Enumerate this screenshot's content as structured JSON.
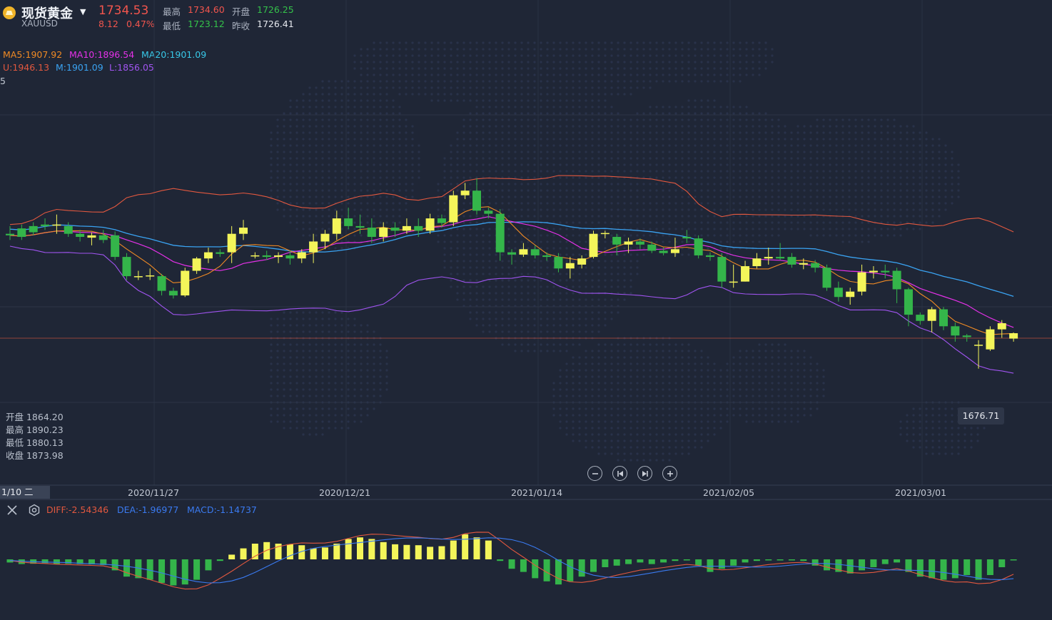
{
  "colors": {
    "background": "#1f2636",
    "up_candle": "#f4f55a",
    "down_candle": "#34b54a",
    "ma5": "#f08a24",
    "ma10": "#e431e8",
    "ma20": "#3aa3f2",
    "boll_upper": "#e2583f",
    "boll_mid": "#3aa3f2",
    "boll_lower": "#a054f0",
    "diff": "#e2583f",
    "dea": "#3a7af0",
    "price_line": "#e2583f"
  },
  "header": {
    "symbol_name": "现货黄金",
    "symbol_code": "XAUUSD",
    "last_price": "1734.53",
    "change": "8.12",
    "change_pct": "0.47%",
    "high_label": "最高",
    "high_value": "1734.60",
    "open_label": "开盘",
    "open_value": "1726.25",
    "low_label": "最低",
    "low_value": "1723.12",
    "prev_close_label": "昨收",
    "prev_close_value": "1726.41"
  },
  "legend_ma": {
    "ma5": "MA5:1907.92",
    "ma10": "MA10:1896.54",
    "ma20": "MA20:1901.09"
  },
  "legend_boll": {
    "upper": "U:1946.13",
    "mid": "M:1901.09",
    "lower": "L:1856.05"
  },
  "price_axis": {
    "top_partial": "5"
  },
  "ohlc_info": {
    "open": "开盘 1864.20",
    "high": "最高 1890.23",
    "low": "最低 1880.13",
    "close": "收盘 1873.98"
  },
  "low_marker": "1676.71",
  "date_axis": {
    "crosshair": "1/10 二",
    "labels": [
      "2020/11/27",
      "2020/12/21",
      "2021/01/14",
      "2021/02/05",
      "2021/03/01"
    ]
  },
  "macd_legend": {
    "diff": "DIFF:-2.54346",
    "dea": "DEA:-1.96977",
    "macd": "MACD:-1.14737"
  },
  "controls": {
    "zoom_out": "zoom-out",
    "prev": "previous",
    "next": "next",
    "zoom_in": "zoom-in"
  },
  "chart_data": {
    "type": "candlestick",
    "candles_ohlc": [
      [
        1870,
        1868,
        1880,
        1862
      ],
      [
        1877,
        1866,
        1882,
        1862
      ],
      [
        1880,
        1872,
        1885,
        1868
      ],
      [
        1882,
        1880,
        1890,
        1875
      ],
      [
        1881,
        1882,
        1895,
        1870
      ],
      [
        1880,
        1870,
        1885,
        1866
      ],
      [
        1870,
        1866,
        1875,
        1860
      ],
      [
        1865,
        1868,
        1872,
        1855
      ],
      [
        1868,
        1862,
        1875,
        1858
      ],
      [
        1868,
        1840,
        1873,
        1836
      ],
      [
        1840,
        1815,
        1845,
        1810
      ],
      [
        1815,
        1815,
        1822,
        1810
      ],
      [
        1815,
        1816,
        1825,
        1810
      ],
      [
        1815,
        1796,
        1818,
        1790
      ],
      [
        1796,
        1790,
        1800,
        1786
      ],
      [
        1790,
        1822,
        1826,
        1788
      ],
      [
        1822,
        1838,
        1840,
        1818
      ],
      [
        1838,
        1846,
        1852,
        1832
      ],
      [
        1846,
        1844,
        1850,
        1840
      ],
      [
        1846,
        1870,
        1880,
        1832
      ],
      [
        1870,
        1878,
        1888,
        1862
      ],
      [
        1842,
        1842,
        1846,
        1838
      ],
      [
        1842,
        1840,
        1848,
        1836
      ],
      [
        1840,
        1842,
        1846,
        1832
      ],
      [
        1842,
        1838,
        1848,
        1830
      ],
      [
        1838,
        1846,
        1850,
        1832
      ],
      [
        1846,
        1860,
        1870,
        1832
      ],
      [
        1860,
        1870,
        1875,
        1850
      ],
      [
        1870,
        1890,
        1900,
        1862
      ],
      [
        1890,
        1880,
        1904,
        1876
      ],
      [
        1880,
        1878,
        1895,
        1870
      ],
      [
        1878,
        1866,
        1890,
        1858
      ],
      [
        1866,
        1878,
        1885,
        1860
      ],
      [
        1878,
        1874,
        1885,
        1866
      ],
      [
        1874,
        1880,
        1890,
        1870
      ],
      [
        1880,
        1874,
        1890,
        1866
      ],
      [
        1874,
        1890,
        1896,
        1870
      ],
      [
        1890,
        1884,
        1895,
        1878
      ],
      [
        1885,
        1920,
        1926,
        1880
      ],
      [
        1920,
        1926,
        1936,
        1915
      ],
      [
        1926,
        1900,
        1942,
        1895
      ],
      [
        1900,
        1896,
        1904,
        1890
      ],
      [
        1896,
        1846,
        1902,
        1835
      ],
      [
        1846,
        1843,
        1850,
        1830
      ],
      [
        1843,
        1850,
        1858,
        1840
      ],
      [
        1850,
        1842,
        1855,
        1838
      ],
      [
        1842,
        1840,
        1846,
        1835
      ],
      [
        1840,
        1825,
        1845,
        1820
      ],
      [
        1825,
        1832,
        1840,
        1812
      ],
      [
        1830,
        1838,
        1842,
        1825
      ],
      [
        1840,
        1870,
        1874,
        1838
      ],
      [
        1870,
        1871,
        1874,
        1864
      ],
      [
        1866,
        1856,
        1870,
        1842
      ],
      [
        1856,
        1860,
        1865,
        1845
      ],
      [
        1860,
        1856,
        1864,
        1850
      ],
      [
        1856,
        1848,
        1860,
        1845
      ],
      [
        1848,
        1845,
        1852,
        1842
      ],
      [
        1845,
        1850,
        1865,
        1840
      ],
      [
        1866,
        1864,
        1875,
        1858
      ],
      [
        1864,
        1842,
        1868,
        1838
      ],
      [
        1842,
        1840,
        1846,
        1835
      ],
      [
        1840,
        1808,
        1845,
        1800
      ],
      [
        1808,
        1808,
        1830,
        1800
      ],
      [
        1808,
        1828,
        1835,
        1808
      ],
      [
        1828,
        1838,
        1845,
        1825
      ],
      [
        1838,
        1840,
        1852,
        1830
      ],
      [
        1840,
        1838,
        1858,
        1836
      ],
      [
        1840,
        1830,
        1845,
        1826
      ],
      [
        1830,
        1832,
        1838,
        1824
      ],
      [
        1832,
        1826,
        1836,
        1820
      ],
      [
        1826,
        1800,
        1830,
        1796
      ],
      [
        1800,
        1788,
        1808,
        1782
      ],
      [
        1788,
        1795,
        1800,
        1778
      ],
      [
        1795,
        1820,
        1830,
        1790
      ],
      [
        1820,
        1822,
        1828,
        1812
      ],
      [
        1822,
        1820,
        1830,
        1812
      ],
      [
        1822,
        1798,
        1826,
        1780
      ],
      [
        1798,
        1765,
        1800,
        1750
      ],
      [
        1765,
        1757,
        1768,
        1752
      ],
      [
        1757,
        1772,
        1775,
        1742
      ],
      [
        1772,
        1750,
        1775,
        1745
      ],
      [
        1750,
        1738,
        1755,
        1730
      ],
      [
        1738,
        1736,
        1740,
        1730
      ],
      [
        1726,
        1726,
        1732,
        1695
      ],
      [
        1720,
        1746,
        1750,
        1718
      ],
      [
        1746,
        1754,
        1758,
        1735
      ],
      [
        1734,
        1741,
        1742,
        1730
      ]
    ],
    "macd_hist": [
      -1,
      -1.5,
      -1.4,
      -1.2,
      -1.5,
      -1.4,
      -1.5,
      -1.6,
      -1.8,
      -3.5,
      -5.5,
      -6,
      -6.5,
      -7.5,
      -8.3,
      -8,
      -6.5,
      -3.5,
      -0.5,
      1.5,
      3.5,
      5,
      5.5,
      5,
      4.8,
      4.5,
      3.5,
      3.8,
      5,
      6.5,
      7,
      6.5,
      5.5,
      4.8,
      4.6,
      4.5,
      4,
      4.2,
      6,
      8,
      7,
      6,
      -0.5,
      -3,
      -4,
      -6,
      -7,
      -8,
      -7,
      -5.5,
      -4,
      -2.5,
      -2,
      -1.5,
      -1,
      -1.5,
      -1,
      -0.5,
      -0.3,
      -2,
      -4,
      -3,
      -2,
      -1,
      -0.5,
      -0.3,
      -0.3,
      -0.3,
      -0.5,
      -2,
      -3.5,
      -4,
      -4.5,
      -3.5,
      -2.5,
      -1.5,
      -1,
      -4,
      -5.5,
      -6,
      -6.5,
      -6,
      -5,
      -6.5,
      -5,
      -2.5,
      -0.3
    ]
  }
}
